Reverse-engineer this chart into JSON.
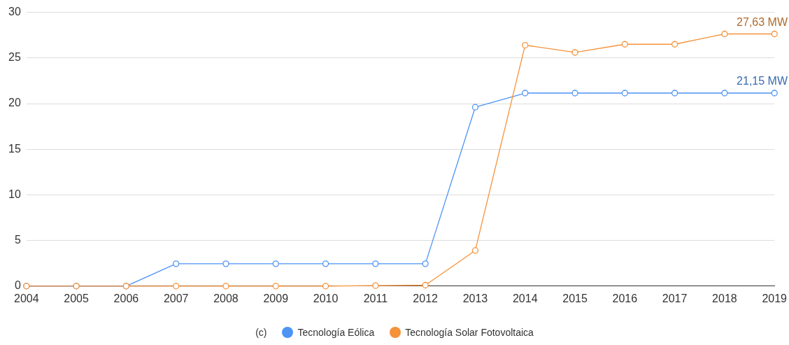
{
  "chart_data": {
    "type": "line",
    "categories": [
      "2004",
      "2005",
      "2006",
      "2007",
      "2008",
      "2009",
      "2010",
      "2011",
      "2012",
      "2013",
      "2014",
      "2015",
      "2016",
      "2017",
      "2018",
      "2019"
    ],
    "series": [
      {
        "name": "Tecnología Eólica",
        "color": "#4e94f5",
        "values": [
          0,
          0,
          0,
          2.45,
          2.45,
          2.45,
          2.45,
          2.45,
          2.45,
          19.6,
          21.15,
          21.15,
          21.15,
          21.15,
          21.15,
          21.15
        ]
      },
      {
        "name": "Tecnología Solar Fotovoltaica",
        "color": "#f5923a",
        "values": [
          0,
          0,
          0,
          0,
          0,
          0,
          0,
          0.05,
          0.1,
          3.9,
          26.4,
          25.6,
          26.5,
          26.5,
          27.63,
          27.63
        ]
      }
    ],
    "ylim": [
      0,
      30
    ],
    "yticks": [
      0,
      5,
      10,
      15,
      20,
      25,
      30
    ],
    "grid": "y",
    "legend": "bottom",
    "marker": "circle",
    "line_style": "solid",
    "annotations": [
      {
        "text": "27,63 MW",
        "x": "2019",
        "y": 27.63
      },
      {
        "text": "21,15 MW",
        "x": "2019",
        "y": 21.15
      },
      "(c)"
    ]
  }
}
